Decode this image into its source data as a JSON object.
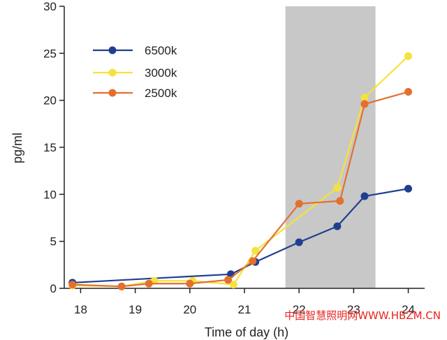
{
  "colors": {
    "series_6500k": "#1f3f8f",
    "series_3000k": "#f5e23b",
    "series_2500k": "#e4702e",
    "shade": "#c8c8c8",
    "axis": "#222222",
    "watermark": "#e8231f"
  },
  "watermark": "中国智慧照明网WWW.HBZM.CN",
  "chart_data": {
    "type": "line",
    "title": "",
    "xlabel": "Time of day (h)",
    "ylabel": "pg/ml",
    "xlim": [
      17.7,
      24.3
    ],
    "ylim": [
      0,
      30
    ],
    "xticks": [
      18,
      19,
      20,
      21,
      22,
      23,
      24
    ],
    "yticks": [
      0,
      5,
      10,
      15,
      20,
      25,
      30
    ],
    "shaded_region": [
      21.75,
      23.4
    ],
    "legend_position": "top-left",
    "series": [
      {
        "name": "6500k",
        "color_key": "series_6500k",
        "points": [
          [
            17.85,
            0.6
          ],
          [
            20.75,
            1.5
          ],
          [
            21.2,
            2.8
          ],
          [
            22,
            4.9
          ],
          [
            22.7,
            6.6
          ],
          [
            23.2,
            9.8
          ],
          [
            24,
            10.6
          ]
        ]
      },
      {
        "name": "3000k",
        "color_key": "series_3000k",
        "points": [
          [
            17.85,
            0.3
          ],
          [
            18.75,
            0.2
          ],
          [
            19.35,
            0.8
          ],
          [
            20.05,
            0.8
          ],
          [
            20.8,
            0.4
          ],
          [
            21.2,
            4.0
          ],
          [
            22.7,
            10.7
          ],
          [
            23.2,
            20.3
          ],
          [
            24,
            24.7
          ]
        ]
      },
      {
        "name": "2500k",
        "color_key": "series_2500k",
        "points": [
          [
            17.85,
            0.4
          ],
          [
            18.75,
            0.2
          ],
          [
            19.25,
            0.5
          ],
          [
            20,
            0.5
          ],
          [
            20.7,
            0.9
          ],
          [
            21.15,
            2.9
          ],
          [
            22,
            9.0
          ],
          [
            22.75,
            9.3
          ],
          [
            23.2,
            19.6
          ],
          [
            24,
            20.9
          ]
        ]
      }
    ]
  }
}
